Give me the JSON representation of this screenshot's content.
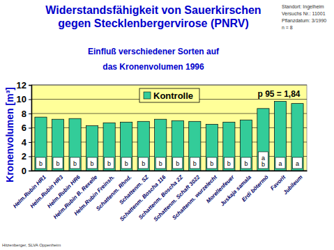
{
  "chart_data": {
    "type": "bar",
    "title": [
      "Widerstandsfähigkeit von Sauerkirschen",
      "gegen Stecklenbergervirose (PNRV)"
    ],
    "subtitle": [
      "Einfluß verschiedener Sorten auf",
      "das Kronenvolumen 1996"
    ],
    "info": [
      "Standort: Ingelheim",
      "Versuchs Nr.: 11001",
      "Pflanzdatum: 3/1990",
      "n = 8"
    ],
    "annotation": "p 95 = 1,84",
    "source": "Hitzenberger, SLVA Oppenheim",
    "y_label": "Kronenvolumen [m³]",
    "categories": [
      "Helm.Rubin HR1",
      "Helm.Rubin HR3",
      "Helm.Rubin HR6",
      "Helm.Rubin B. Rexelle",
      "Helm.Rubin Freinsh.",
      "Schattenm. Rhnd.",
      "Schattenm. SZ",
      "Schattenm. Boscha 116",
      "Schattenm. Boscha 2Z",
      "Schattenm. Schaft 3022",
      "Schattenm. wurzelecht",
      "Morellenfeuer",
      "Juskaja samala",
      "Erdi bötermö",
      "Favorit",
      "Jubileum"
    ],
    "series": [
      {
        "name": "Kontrolle",
        "color": "#33cc99",
        "values": [
          7.5,
          7.2,
          7.3,
          6.3,
          6.7,
          6.8,
          6.9,
          7.2,
          7.0,
          6.9,
          6.5,
          6.8,
          7.1,
          8.7,
          9.7,
          9.4
        ]
      }
    ],
    "group_labels": [
      "b",
      "b",
      "b",
      "b",
      "b",
      "b",
      "b",
      "b",
      "b",
      "b",
      "b",
      "b",
      "b",
      "a b",
      "a",
      "a"
    ],
    "ylim": [
      0,
      12
    ],
    "yticks": [
      0,
      2,
      4,
      6,
      8,
      10,
      12
    ],
    "grid": true,
    "legend": "top"
  }
}
